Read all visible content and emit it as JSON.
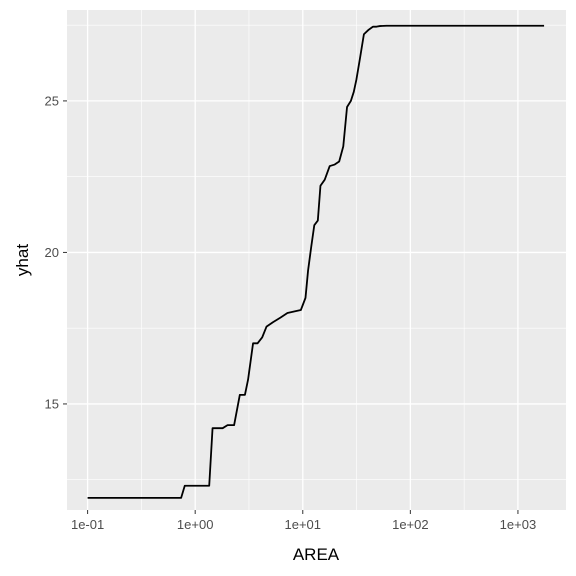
{
  "chart_data": {
    "type": "line",
    "title": "",
    "xlabel": "AREA",
    "ylabel": "yhat",
    "x_scale": "log10",
    "xlim": [
      0.1,
      1800
    ],
    "ylim": [
      11.5,
      28.0
    ],
    "grid": true,
    "x_ticks": [
      {
        "value": 0.1,
        "label": "1e-01"
      },
      {
        "value": 1,
        "label": "1e+00"
      },
      {
        "value": 10,
        "label": "1e+01"
      },
      {
        "value": 100,
        "label": "1e+02"
      },
      {
        "value": 1000,
        "label": "1e+03"
      }
    ],
    "y_ticks": [
      {
        "value": 15,
        "label": "15"
      },
      {
        "value": 20,
        "label": "20"
      },
      {
        "value": 25,
        "label": "25"
      }
    ],
    "colors": {
      "panel": "#ebebeb",
      "grid": "#ffffff",
      "line": "#000000"
    },
    "series": [
      {
        "x": [
          0.1,
          0.74,
          0.8,
          1.35,
          1.45,
          1.8,
          2.0,
          2.3,
          2.6,
          2.9,
          3.1,
          3.45,
          3.8,
          4.2,
          4.6,
          5.3,
          6.2,
          7.2,
          8.3,
          9.6,
          10.6,
          11.2,
          12.0,
          12.8,
          13.8,
          14.6,
          16.0,
          17.8,
          19.8,
          21.8,
          23.8,
          25.8,
          28.0,
          29.8,
          31.5,
          34.0,
          37.0,
          41.0,
          45.0,
          48.5,
          52.0,
          60.0,
          80.0,
          130.0,
          400.0,
          1000.0,
          1750.0
        ],
        "y": [
          11.9,
          11.9,
          12.3,
          12.3,
          14.2,
          14.2,
          14.3,
          14.3,
          15.3,
          15.3,
          15.8,
          17.0,
          17.0,
          17.2,
          17.55,
          17.7,
          17.85,
          18.0,
          18.05,
          18.1,
          18.5,
          19.4,
          20.2,
          20.9,
          21.05,
          22.2,
          22.4,
          22.85,
          22.9,
          23.0,
          23.5,
          24.8,
          25.0,
          25.3,
          25.7,
          26.4,
          27.2,
          27.35,
          27.45,
          27.45,
          27.47,
          27.48,
          27.48,
          27.48,
          27.48,
          27.48,
          27.48
        ]
      }
    ]
  }
}
